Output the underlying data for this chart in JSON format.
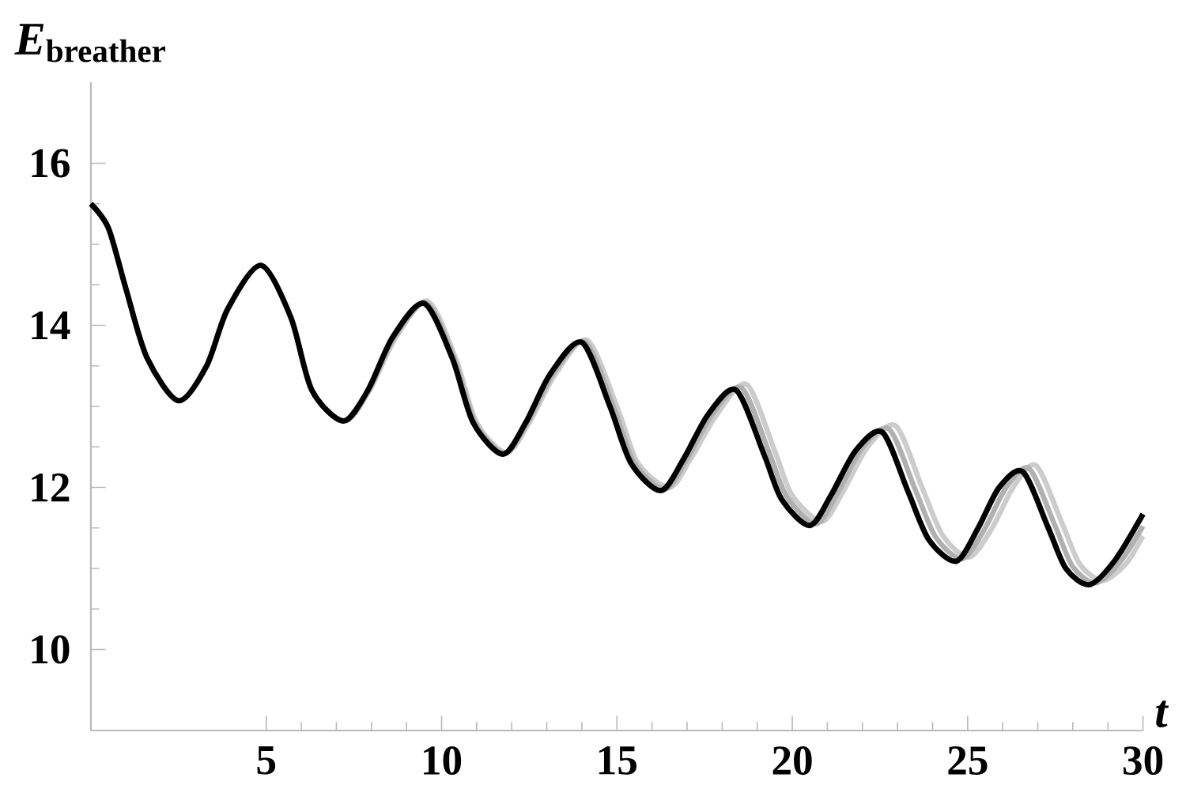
{
  "chart_data": {
    "type": "line",
    "xlabel": "*t*",
    "ylabel": "*E*$_{breather}$",
    "xlim": [
      0,
      30
    ],
    "ylim": [
      9,
      17
    ],
    "xticks": [
      5,
      10,
      15,
      20,
      25,
      30
    ],
    "yticks": [
      10,
      12,
      14,
      16
    ],
    "series": [
      {
        "color": "#cccccc",
        "x": [
          0,
          0.5,
          1.0,
          1.6,
          2.5,
          3.3,
          3.9,
          4.85,
          5.7,
          6.3,
          7.25,
          7.95,
          8.7,
          9.6,
          10.4,
          11.0,
          11.85,
          12.5,
          13.25,
          14.15,
          15.0,
          15.6,
          16.5,
          17.1,
          17.85,
          18.7,
          19.5,
          20.0,
          20.85,
          21.45,
          22.15,
          22.95,
          23.7,
          24.3,
          25.05,
          25.7,
          26.3,
          26.95,
          27.7,
          28.2,
          28.85,
          29.5,
          30
        ],
        "values": [
          15.5,
          15.2,
          14.45,
          13.6,
          13.07,
          13.5,
          14.2,
          14.74,
          14.1,
          13.2,
          12.82,
          13.2,
          13.85,
          14.3,
          13.6,
          12.8,
          12.43,
          12.8,
          13.4,
          13.82,
          13.0,
          12.3,
          12.0,
          12.35,
          12.9,
          13.27,
          12.45,
          11.9,
          11.58,
          11.95,
          12.5,
          12.76,
          12.0,
          11.4,
          11.14,
          11.5,
          12.0,
          12.27,
          11.55,
          11.05,
          10.85,
          11.05,
          11.4
        ]
      },
      {
        "color": "#b0b0b0",
        "x": [
          0,
          0.5,
          1.0,
          1.6,
          2.5,
          3.3,
          3.9,
          4.85,
          5.7,
          6.3,
          7.22,
          7.92,
          8.65,
          9.55,
          10.35,
          10.95,
          11.8,
          12.45,
          13.18,
          14.08,
          14.9,
          15.5,
          16.38,
          17.0,
          17.72,
          18.55,
          19.35,
          19.85,
          20.68,
          21.28,
          21.98,
          22.76,
          23.5,
          24.1,
          24.86,
          25.5,
          26.1,
          26.76,
          27.5,
          28.0,
          28.66,
          29.35,
          30
        ],
        "values": [
          15.5,
          15.2,
          14.45,
          13.6,
          13.07,
          13.5,
          14.2,
          14.74,
          14.1,
          13.2,
          12.82,
          13.2,
          13.85,
          14.28,
          13.6,
          12.8,
          12.42,
          12.8,
          13.4,
          13.8,
          13.0,
          12.3,
          11.98,
          12.35,
          12.9,
          13.23,
          12.42,
          11.88,
          11.55,
          11.92,
          12.48,
          12.72,
          11.98,
          11.38,
          11.12,
          11.5,
          12.0,
          12.23,
          11.52,
          11.02,
          10.82,
          11.08,
          11.52
        ]
      },
      {
        "color": "#000000",
        "x": [
          0,
          0.5,
          1.0,
          1.6,
          2.5,
          3.3,
          3.9,
          4.85,
          5.7,
          6.3,
          7.2,
          7.9,
          8.6,
          9.5,
          10.3,
          10.9,
          11.75,
          12.4,
          13.1,
          14.0,
          14.8,
          15.4,
          16.25,
          16.9,
          17.6,
          18.4,
          19.2,
          19.7,
          20.5,
          21.1,
          21.8,
          22.57,
          23.3,
          23.9,
          24.68,
          25.3,
          25.9,
          26.58,
          27.3,
          27.8,
          28.47,
          29.2,
          30
        ],
        "values": [
          15.5,
          15.2,
          14.45,
          13.6,
          13.07,
          13.5,
          14.2,
          14.74,
          14.1,
          13.2,
          12.82,
          13.2,
          13.85,
          14.27,
          13.6,
          12.8,
          12.41,
          12.8,
          13.4,
          13.79,
          13.0,
          12.3,
          11.96,
          12.35,
          12.9,
          13.2,
          12.4,
          11.85,
          11.53,
          11.9,
          12.45,
          12.68,
          11.95,
          11.35,
          11.09,
          11.5,
          12.0,
          12.19,
          11.5,
          11.0,
          10.8,
          11.1,
          11.67
        ]
      }
    ]
  }
}
